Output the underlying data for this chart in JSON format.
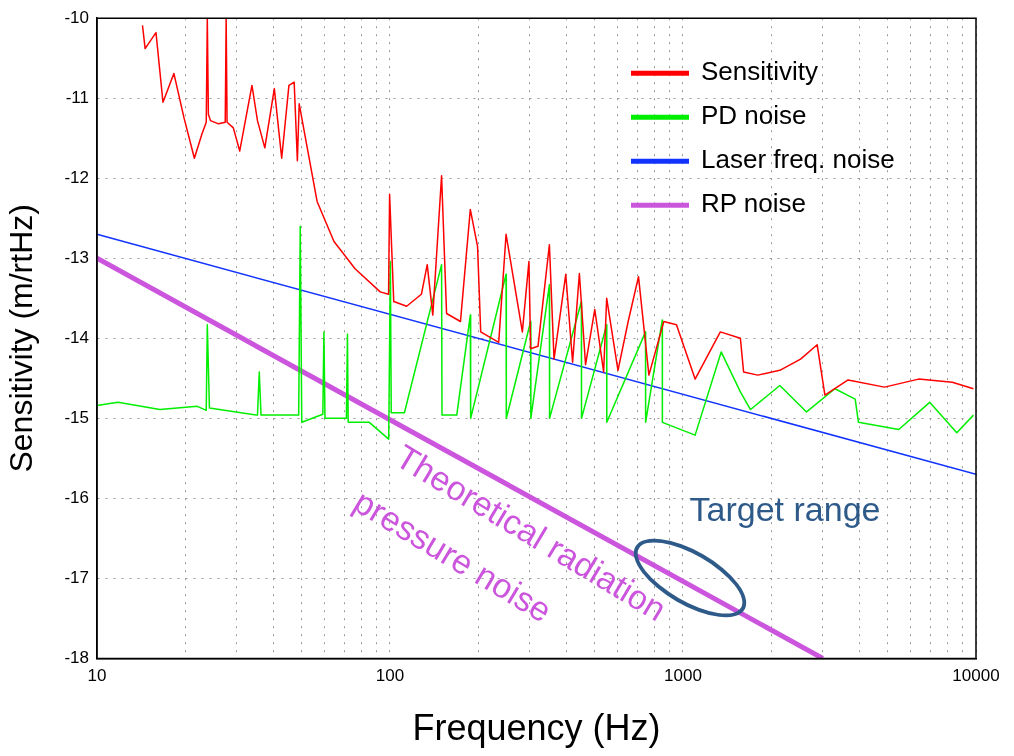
{
  "chart_data": {
    "type": "line",
    "xlabel": "Frequency (Hz)",
    "ylabel": "Sensitivity (m/rtHz)",
    "log": "x",
    "grid": true,
    "line_style": "solid",
    "marker": "none",
    "legend": "top right",
    "xlim": [
      10,
      10000
    ],
    "ylim": [
      -18,
      -10
    ],
    "xticks": [
      10,
      {
        "value": 20,
        "label": null
      },
      {
        "value": 30,
        "label": null
      },
      {
        "value": 40,
        "label": null
      },
      {
        "value": 50,
        "label": null
      },
      {
        "value": 60,
        "label": null
      },
      {
        "value": 70,
        "label": null
      },
      {
        "value": 80,
        "label": null
      },
      {
        "value": 90,
        "label": null
      },
      100,
      {
        "value": 200,
        "label": null
      },
      {
        "value": 300,
        "label": null
      },
      {
        "value": 400,
        "label": null
      },
      {
        "value": 500,
        "label": null
      },
      {
        "value": 600,
        "label": null
      },
      {
        "value": 700,
        "label": null
      },
      {
        "value": 800,
        "label": null
      },
      {
        "value": 900,
        "label": null
      },
      1000,
      {
        "value": 2000,
        "label": null
      },
      {
        "value": 3000,
        "label": null
      },
      {
        "value": 4000,
        "label": null
      },
      {
        "value": 5000,
        "label": null
      },
      {
        "value": 6000,
        "label": null
      },
      {
        "value": 7000,
        "label": null
      },
      {
        "value": 8000,
        "label": null
      },
      {
        "value": 9000,
        "label": null
      },
      10000
    ],
    "yticks": [
      -18,
      -17,
      -16,
      -15,
      -14,
      -13,
      -12,
      -11,
      -10
    ],
    "series": [
      {
        "name": "Sensitivity",
        "color": "#ff0000",
        "x": [
          14.3,
          14.6,
          15.9,
          16.8,
          18.3,
          19.8,
          21.5,
          22.8,
          23.6,
          23.8,
          24.0,
          24.4,
          26,
          27.4,
          27.6,
          27.8,
          29.2,
          30.7,
          33.8,
          35.3,
          37.4,
          40.3,
          42.7,
          45.2,
          47.1,
          48.3,
          49,
          51.9,
          56.4,
          64.4,
          76,
          92.6,
          98.9,
          99.7,
          103,
          114,
          128,
          134,
          140,
          150,
          156,
          174,
          188,
          199,
          204,
          235,
          249,
          283,
          298,
          302,
          320,
          350,
          363,
          398,
          420,
          443,
          465,
          500,
          536,
          549,
          600,
          650,
          705,
          765,
          860,
          950,
          1100,
          1341,
          1570,
          1610,
          1800,
          2140,
          2520,
          2870,
          3050,
          3660,
          4870,
          6370,
          8300,
          9800
        ],
        "values": [
          -10.09,
          -10.38,
          -10.18,
          -11.05,
          -10.69,
          -11.24,
          -11.75,
          -11.45,
          -11.3,
          -10.0,
          -11.2,
          -11.28,
          -11.32,
          -11.3,
          -10.0,
          -11.3,
          -11.37,
          -11.66,
          -10.84,
          -11.28,
          -11.62,
          -10.88,
          -11.75,
          -10.84,
          -10.8,
          -11.78,
          -11.07,
          -11.57,
          -12.29,
          -12.79,
          -13.13,
          -13.42,
          -13.45,
          -12.2,
          -13.54,
          -13.6,
          -13.45,
          -13.08,
          -13.71,
          -11.97,
          -13.69,
          -13.79,
          -12.39,
          -12.85,
          -13.92,
          -14.05,
          -12.7,
          -13.92,
          -13.04,
          -14.13,
          -14.1,
          -12.83,
          -14.26,
          -13.2,
          -14.3,
          -13.19,
          -14.33,
          -13.64,
          -14.42,
          -13.5,
          -14.4,
          -13.79,
          -13.23,
          -14.46,
          -13.79,
          -13.83,
          -14.51,
          -13.92,
          -14.0,
          -14.42,
          -14.46,
          -14.4,
          -14.26,
          -14.08,
          -14.71,
          -14.52,
          -14.61,
          -14.51,
          -14.55,
          -14.63
        ]
      },
      {
        "name": "PD noise",
        "color": "#00ee00",
        "x": [
          10,
          11.8,
          16.4,
          22,
          23.6,
          23.8,
          24.2,
          35,
          35.3,
          35.8,
          36.3,
          48.8,
          49.4,
          50,
          59,
          59.5,
          60,
          71,
          71.6,
          72,
          85,
          99,
          100.3,
          101,
          112,
          150,
          150.5,
          169,
          188,
          188.5,
          249,
          249.5,
          302,
          302.5,
          350,
          350.5,
          450,
          450.5,
          549,
          549.5,
          745,
          745.5,
          850,
          850.5,
          1100,
          1350,
          1570,
          1700,
          2140,
          2640,
          3300,
          3870,
          3970,
          5450,
          6950,
          8600,
          9800
        ],
        "values": [
          -14.84,
          -14.8,
          -14.89,
          -14.85,
          -14.9,
          -13.83,
          -14.87,
          -14.96,
          -14.96,
          -14.42,
          -14.96,
          -14.96,
          -12.6,
          -15.05,
          -14.95,
          -13.92,
          -15.0,
          -15.0,
          -13.95,
          -15.05,
          -15.05,
          -15.26,
          -13.04,
          -14.93,
          -14.93,
          -13.08,
          -14.96,
          -14.96,
          -13.71,
          -15.0,
          -13.2,
          -15.0,
          -13.79,
          -15.0,
          -13.33,
          -15.0,
          -13.54,
          -15.0,
          -13.83,
          -15.05,
          -13.92,
          -15.05,
          -13.77,
          -15.05,
          -15.21,
          -14.17,
          -14.67,
          -14.89,
          -14.59,
          -14.92,
          -14.63,
          -14.76,
          -15.05,
          -15.14,
          -14.8,
          -15.18,
          -14.96
        ]
      },
      {
        "name": "Laser freq. noise",
        "color": "#1133ff",
        "x": [
          10,
          10000
        ],
        "values": [
          -12.7,
          -15.7
        ]
      },
      {
        "name": "RP noise",
        "color": "#cc55dd",
        "x": [
          10,
          3000
        ],
        "values": [
          -13,
          -18
        ]
      }
    ],
    "annotations": [
      "Theoretical radiation\npressure noise",
      "Target range"
    ]
  }
}
